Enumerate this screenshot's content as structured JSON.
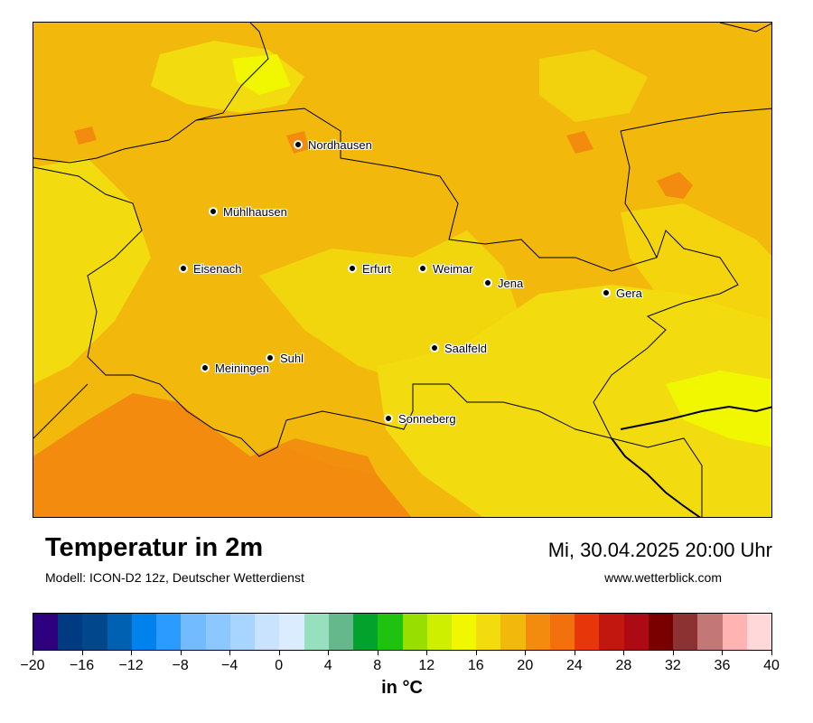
{
  "title": "Temperatur in 2m",
  "subtitle": "Modell: ICON-D2 12z, Deutscher Wetterdienst",
  "datetime": "Mi, 30.04.2025 20:00 Uhr",
  "website": "www.wetterblick.com",
  "cities": [
    {
      "name": "Nordhausen"
    },
    {
      "name": "Mühlhausen"
    },
    {
      "name": "Eisenach"
    },
    {
      "name": "Erfurt"
    },
    {
      "name": "Weimar"
    },
    {
      "name": "Jena"
    },
    {
      "name": "Gera"
    },
    {
      "name": "Saalfeld"
    },
    {
      "name": "Suhl"
    },
    {
      "name": "Meiningen"
    },
    {
      "name": "Sonneberg"
    }
  ],
  "colorbar": {
    "unit": "in °C",
    "min": -20,
    "max": 40,
    "ticks": [
      "−20",
      "−16",
      "−12",
      "−8",
      "−4",
      "0",
      "4",
      "8",
      "12",
      "16",
      "20",
      "24",
      "28",
      "32",
      "36",
      "40"
    ],
    "colors": [
      "#2e0080",
      "#003a80",
      "#00478c",
      "#0061b3",
      "#0082ec",
      "#2c9bff",
      "#72bbff",
      "#8cc8ff",
      "#a8d5ff",
      "#c9e3ff",
      "#dcecff",
      "#97e0bd",
      "#65b88b",
      "#03a22d",
      "#20c210",
      "#98de00",
      "#cef000",
      "#f0f700",
      "#f2db0e",
      "#f2b90c",
      "#f28b0e",
      "#f2710e",
      "#e8360b",
      "#c2170e",
      "#ad0b14",
      "#7a0000",
      "#8c3232",
      "#c47777",
      "#ffb3b3",
      "#ffd9d9"
    ],
    "map_colors": {
      "base": "#f2b90c",
      "warm": "#f28b0e",
      "cool": "#f2db0e",
      "coolest": "#f0f700"
    }
  }
}
